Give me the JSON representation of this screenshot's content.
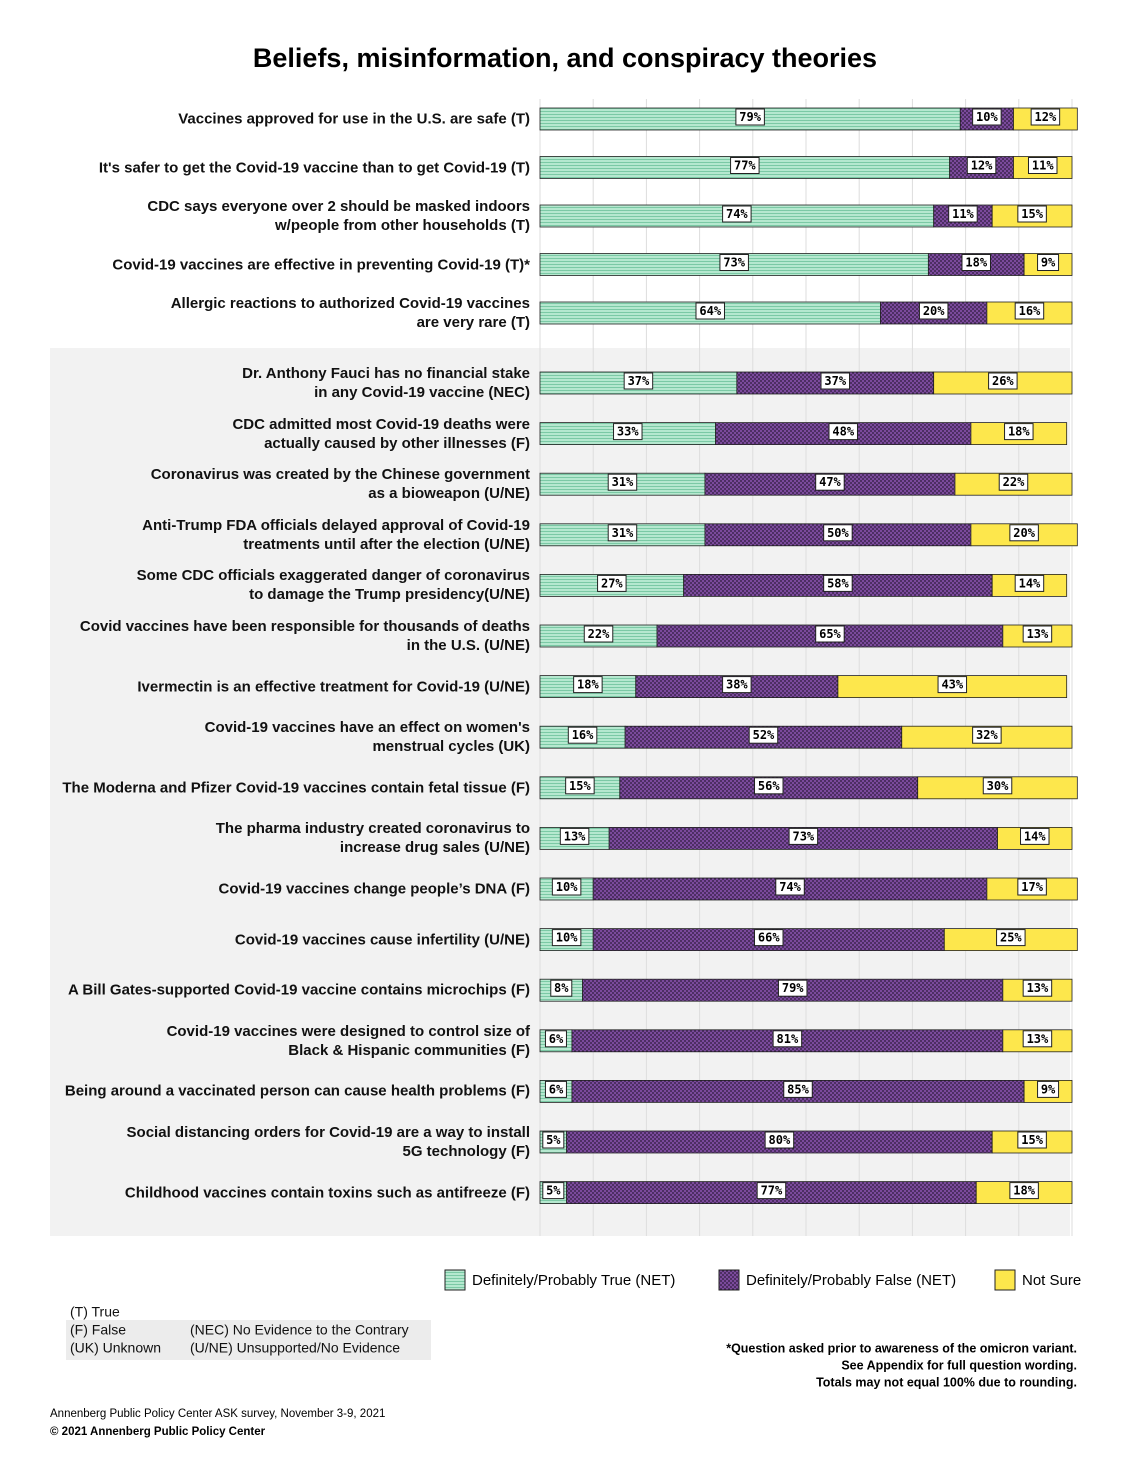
{
  "chart_data": {
    "type": "stacked-bar",
    "title": "Beliefs, misinformation, and conspiracy theories",
    "categories": [
      "Vaccines approved for use in the U.S. are safe (T)",
      "It's safer to get the Covid-19 vaccine than to get Covid-19 (T)",
      "CDC says everyone over 2 should be masked indoors\nw/people from other households (T)",
      "Covid-19 vaccines are effective in preventing Covid-19 (T)*",
      "Allergic reactions to authorized Covid-19 vaccines\nare very rare (T)",
      "Dr. Anthony Fauci has no financial stake\nin any Covid-19 vaccine (NEC)",
      "CDC admitted most Covid-19 deaths were\nactually caused by other illnesses (F)",
      "Coronavirus was created by the Chinese government\nas a bioweapon (U/NE)",
      "Anti-Trump FDA officials delayed approval of Covid-19\ntreatments until after the election (U/NE)",
      "Some CDC officials exaggerated danger of coronavirus\nto damage the Trump presidency(U/NE)",
      "Covid vaccines have been responsible for thousands of deaths\nin the U.S. (U/NE)",
      "Ivermectin is an effective treatment for Covid-19 (U/NE)",
      "Covid-19 vaccines have an effect on women's\nmenstrual cycles (UK)",
      "The Moderna and Pfizer Covid-19 vaccines contain fetal tissue (F)",
      "The pharma industry created coronavirus to\nincrease drug sales (U/NE)",
      "Covid-19 vaccines change people’s DNA  (F)",
      "Covid-19 vaccines cause infertility (U/NE)",
      "A Bill Gates-supported Covid-19 vaccine contains microchips (F)",
      "Covid-19 vaccines were designed to control size of\nBlack & Hispanic communities (F)",
      "Being around a vaccinated person can cause health problems (F)",
      "Social distancing orders for Covid-19 are a way to install\n5G technology (F)",
      "Childhood vaccines contain toxins such as antifreeze (F)"
    ],
    "series": [
      {
        "name": "Definitely/Probably True (NET)",
        "color": "#b5e8cf",
        "pattern": "stripes",
        "values": [
          79,
          77,
          74,
          73,
          64,
          37,
          33,
          31,
          31,
          27,
          22,
          18,
          16,
          15,
          13,
          10,
          10,
          8,
          6,
          6,
          5,
          5
        ],
        "value_labels": [
          "79%",
          "77%",
          "74%",
          "73%",
          "64%",
          "37%",
          "33%",
          "31%",
          "31%",
          "27%",
          "22%",
          "18%",
          "16%",
          "15%",
          "13%",
          "10%",
          "10%",
          "8%",
          "6%",
          "6%",
          "5%",
          "5%"
        ]
      },
      {
        "name": "Definitely/Probably False (NET)",
        "color": "#7b4a9c",
        "pattern": "dots",
        "values": [
          10,
          12,
          11,
          18,
          20,
          37,
          48,
          47,
          50,
          58,
          65,
          38,
          52,
          56,
          73,
          74,
          66,
          79,
          81,
          85,
          80,
          77
        ],
        "value_labels": [
          "10%",
          "12%",
          "11%",
          "18%",
          "20%",
          "37%",
          "48%",
          "47%",
          "50%",
          "58%",
          "65%",
          "38%",
          "52%",
          "56%",
          "73%",
          "74%",
          "66%",
          "79%",
          "81%",
          "85%",
          "80%",
          "77%"
        ]
      },
      {
        "name": "Not Sure",
        "color": "#fde74c",
        "pattern": "solid",
        "values": [
          12,
          11,
          15,
          9,
          16,
          26,
          18,
          22,
          20,
          14,
          13,
          43,
          32,
          30,
          14,
          17,
          25,
          13,
          13,
          9,
          15,
          18
        ],
        "value_labels": [
          "12%",
          "11%",
          "15%",
          "9%",
          "16%",
          "26%",
          "18%",
          "22%",
          "20%",
          "14%",
          "13%",
          "43%",
          "32%",
          "30%",
          "14%",
          "17%",
          "25%",
          "13%",
          "13%",
          "9%",
          "15%",
          "18%"
        ]
      }
    ],
    "xlim": [
      0,
      100
    ],
    "xticks": [
      0,
      10,
      20,
      30,
      40,
      50,
      60,
      70,
      80,
      90,
      100
    ],
    "grid": true,
    "key": [
      "(T) True",
      "(F) False",
      "(UK) Unknown",
      "(NEC) No Evidence to the Contrary",
      "(U/NE) Unsupported/No Evidence"
    ],
    "notes": [
      "*Question asked prior to awareness of the omicron variant.",
      "See Appendix for full question wording.",
      "Totals may not equal 100% due to rounding."
    ],
    "source": [
      "Annenberg Public Policy Center ASK survey, November 3-9, 2021",
      "© 2021 Annenberg Public Policy Center"
    ]
  }
}
